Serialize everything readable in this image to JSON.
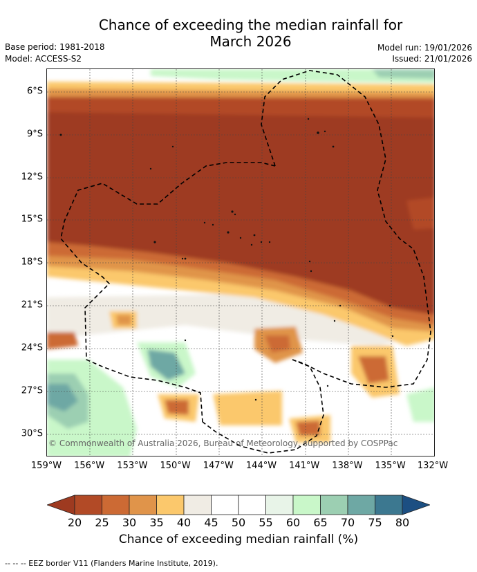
{
  "title_line1": "Chance of exceeding the median rainfall for",
  "title_line2": "March 2026",
  "base_period": "Base period: 1981-2018",
  "model": "Model: ACCESS-S2",
  "model_run": "Model run: 19/01/2026",
  "issued": "Issued: 21/01/2026",
  "map": {
    "lat_ticks": [
      "6°S",
      "9°S",
      "12°S",
      "15°S",
      "18°S",
      "21°S",
      "24°S",
      "27°S",
      "30°S"
    ],
    "lon_ticks": [
      "159°W",
      "156°W",
      "153°W",
      "150°W",
      "147°W",
      "144°W",
      "141°W",
      "138°W",
      "135°W",
      "132°W"
    ],
    "lat_range": [
      -31.6,
      -4.6
    ],
    "lon_range": [
      -159,
      -132
    ],
    "copyright": "© Commonwealth of Australia 2026, Bureau of Meteorology, supported by COSPPac"
  },
  "colorbar": {
    "ticks": [
      "20",
      "25",
      "30",
      "35",
      "40",
      "45",
      "50",
      "55",
      "60",
      "65",
      "70",
      "75",
      "80"
    ],
    "colors": [
      "#9e3a20",
      "#b24a26",
      "#cc6a34",
      "#e0944a",
      "#fbc86c",
      "#f0ece4",
      "#ffffff",
      "#ffffff",
      "#e8f4e8",
      "#c9f7c9",
      "#9ccfb2",
      "#6ea8a4",
      "#3c7890",
      "#1c4f82"
    ],
    "title": "Chance of exceeding median rainfall (%)"
  },
  "footer": "--  --  -- EEZ border V11 (Flanders Marine Institute, 2019)."
}
